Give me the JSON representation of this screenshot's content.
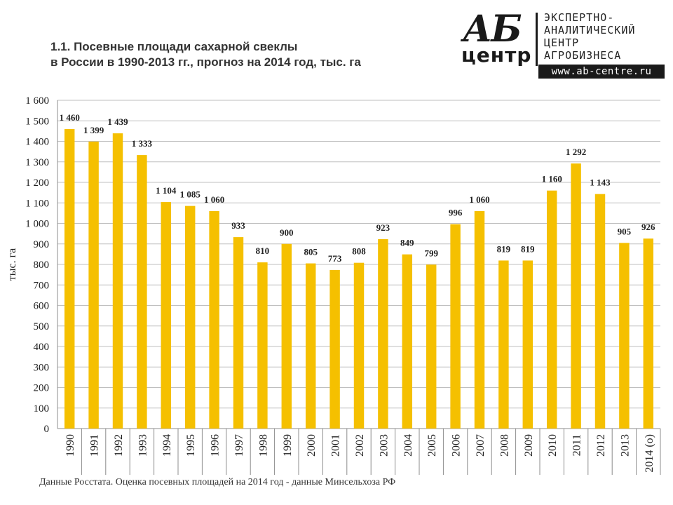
{
  "title": {
    "line1": "1.1. Посевные площади сахарной свеклы",
    "line2": "в России в 1990-2013 гг., прогноз на 2014 год, тыс. га"
  },
  "logo": {
    "mark": "АБ",
    "mark_sub": "центр",
    "lines": [
      "ЭКСПЕРТНО-",
      "АНАЛИТИЧЕСКИЙ",
      "ЦЕНТР",
      "АГРОБИЗНЕСА"
    ],
    "url": "www.ab-centre.ru"
  },
  "footnote": "Данные Росстата. Оценка посевных площадей на 2014 год - данные Минсельхоза РФ",
  "chart_data": {
    "type": "bar",
    "ylabel": "тыс. га",
    "xlabel": "",
    "ylim": [
      0,
      1600
    ],
    "yticks": [
      0,
      100,
      200,
      300,
      400,
      500,
      600,
      700,
      800,
      900,
      1000,
      1100,
      1200,
      1300,
      1400,
      1500,
      1600
    ],
    "ytick_labels": [
      "0",
      "100",
      "200",
      "300",
      "400",
      "500",
      "600",
      "700",
      "800",
      "900",
      "1 000",
      "1 100",
      "1 200",
      "1 300",
      "1 400",
      "1 500",
      "1 600"
    ],
    "grid": true,
    "bar_color": "#F5C000",
    "categories": [
      "1990",
      "1991",
      "1992",
      "1993",
      "1994",
      "1995",
      "1996",
      "1997",
      "1998",
      "1999",
      "2000",
      "2001",
      "2002",
      "2003",
      "2004",
      "2005",
      "2006",
      "2007",
      "2008",
      "2009",
      "2010",
      "2011",
      "2012",
      "2013",
      "2014 (о)"
    ],
    "values": [
      1460,
      1399,
      1439,
      1333,
      1104,
      1085,
      1060,
      933,
      810,
      900,
      805,
      773,
      808,
      923,
      849,
      799,
      996,
      1060,
      819,
      819,
      1160,
      1292,
      1143,
      905,
      926
    ],
    "data_labels": [
      "1 460",
      "1 399",
      "1 439",
      "1 333",
      "1 104",
      "1 085",
      "1 060",
      "933",
      "810",
      "900",
      "805",
      "773",
      "808",
      "923",
      "849",
      "799",
      "996",
      "1 060",
      "819",
      "819",
      "1 160",
      "1 292",
      "1 143",
      "905",
      "926"
    ]
  }
}
